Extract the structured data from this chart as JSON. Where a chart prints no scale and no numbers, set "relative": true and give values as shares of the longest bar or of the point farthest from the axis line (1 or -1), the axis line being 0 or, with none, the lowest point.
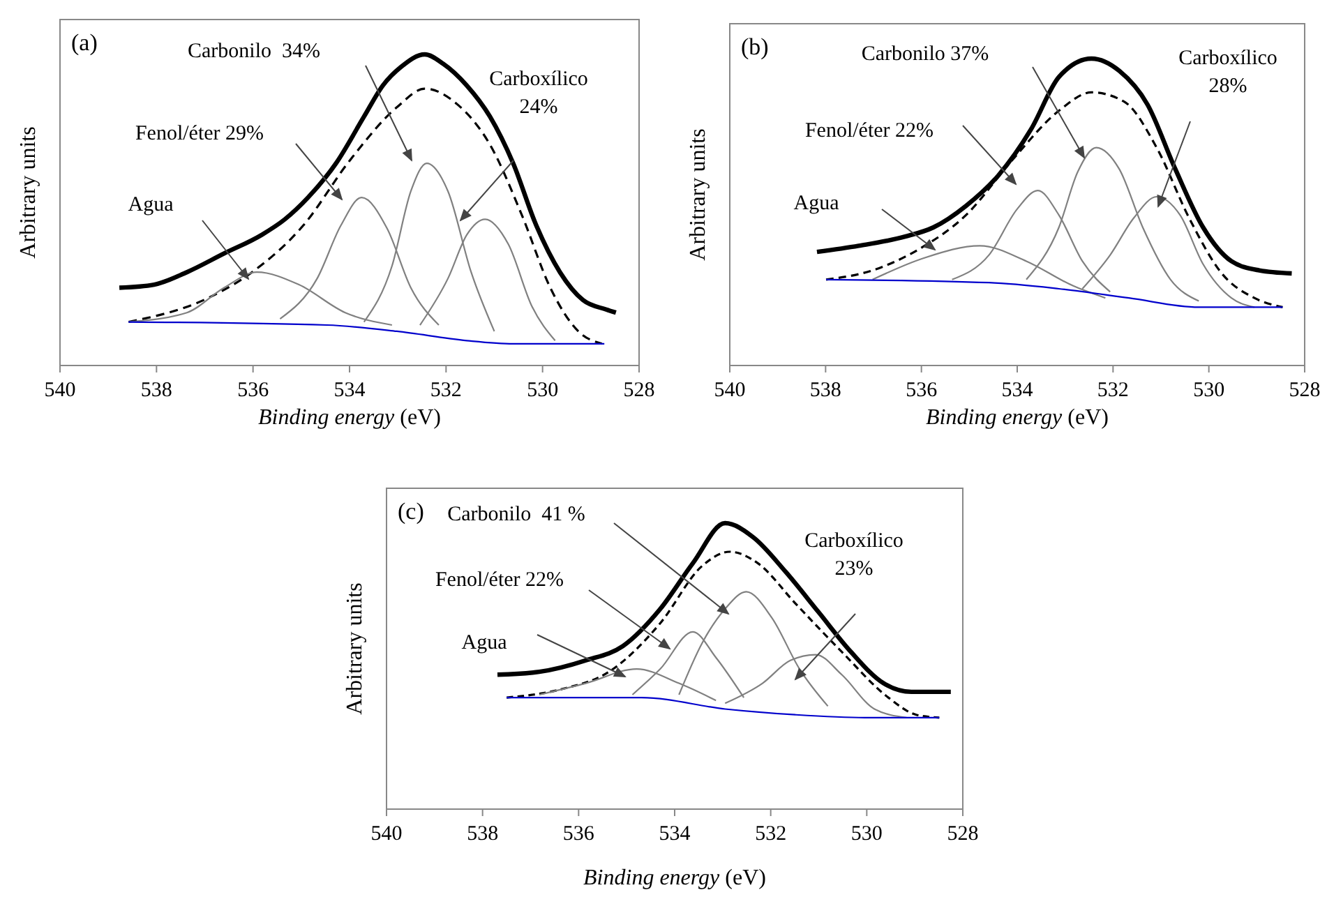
{
  "chart_data": [
    {
      "type": "line",
      "title": "(a)",
      "xlabel": "Binding energy (eV)",
      "ylabel": "Arbitrary units",
      "relative": true,
      "tick_labels": "x",
      "xlim": [
        540,
        528
      ],
      "xticks": [
        540,
        538,
        536,
        534,
        532,
        530,
        528
      ],
      "grid": false,
      "marker": "none",
      "series": [
        {
          "color": "#000000",
          "line_style": "solid",
          "x": [
            538.77,
            538.05,
            537.37,
            536.6,
            535.82,
            535.34,
            534.86,
            534.28,
            533.7,
            533.31,
            532.93,
            532.44,
            532.06,
            531.57,
            531.09,
            530.61,
            530.13,
            529.64,
            529.16,
            528.68,
            528.48
          ],
          "values": [
            0.25,
            0.26,
            0.3,
            0.36,
            0.42,
            0.47,
            0.54,
            0.65,
            0.8,
            0.9,
            0.96,
            1,
            0.97,
            0.9,
            0.8,
            0.65,
            0.45,
            0.3,
            0.21,
            0.18,
            0.17
          ]
        },
        {
          "color": "#000000",
          "line_style": "dashed",
          "x": [
            538.58,
            536.89,
            536.02,
            534.96,
            533.99,
            533.02,
            532.44,
            531.77,
            531.09,
            530.42,
            529.84,
            529.26,
            528.77
          ],
          "values": [
            0.14,
            0.22,
            0.3,
            0.45,
            0.66,
            0.83,
            0.89,
            0.84,
            0.71,
            0.48,
            0.25,
            0.11,
            0.07
          ]
        },
        {
          "color": "#808080",
          "line_style": "solid",
          "x": [
            538.58,
            537.37,
            536.6,
            535.92,
            535.05,
            534.09,
            533.12
          ],
          "values": [
            0.14,
            0.17,
            0.25,
            0.3,
            0.26,
            0.17,
            0.13
          ]
        },
        {
          "color": "#808080",
          "line_style": "solid",
          "x": [
            535.44,
            534.67,
            534.18,
            533.75,
            533.22,
            532.73,
            532.15
          ],
          "values": [
            0.15,
            0.28,
            0.45,
            0.54,
            0.44,
            0.25,
            0.13
          ]
        },
        {
          "color": "#808080",
          "line_style": "solid",
          "x": [
            533.7,
            533.12,
            532.73,
            532.4,
            531.96,
            531.48,
            531.0
          ],
          "values": [
            0.14,
            0.32,
            0.56,
            0.65,
            0.56,
            0.3,
            0.11
          ]
        },
        {
          "color": "#808080",
          "line_style": "solid",
          "x": [
            532.54,
            531.96,
            531.57,
            531.19,
            530.71,
            530.22,
            529.74
          ],
          "values": [
            0.13,
            0.28,
            0.42,
            0.47,
            0.39,
            0.19,
            0.08
          ]
        },
        {
          "color": "#0000cc",
          "line_style": "solid",
          "x": [
            538.58,
            534.47,
            533.02,
            531.57,
            530.61,
            528.72
          ],
          "values": [
            0.14,
            0.13,
            0.11,
            0.08,
            0.07,
            0.07
          ]
        }
      ],
      "annotations": [
        "Agua",
        "Fenol/éter 29%",
        "Carbonilo  34%",
        "Carboxílico\n24%"
      ]
    },
    {
      "type": "line",
      "title": "(b)",
      "xlabel": "Binding energy (eV)",
      "ylabel": "Arbitrary units",
      "relative": true,
      "tick_labels": "x",
      "xlim": [
        540,
        528
      ],
      "xticks": [
        540,
        538,
        536,
        534,
        532,
        530,
        528
      ],
      "grid": false,
      "marker": "none",
      "series": [
        {
          "color": "#000000",
          "line_style": "solid",
          "x": [
            538.18,
            537.31,
            536.34,
            535.75,
            535.07,
            534.39,
            533.71,
            533.13,
            532.45,
            531.87,
            531.28,
            530.7,
            530.12,
            529.53,
            528.95,
            528.27
          ],
          "values": [
            0.37,
            0.39,
            0.42,
            0.45,
            0.52,
            0.62,
            0.77,
            0.94,
            1,
            0.96,
            0.85,
            0.64,
            0.45,
            0.34,
            0.31,
            0.3
          ]
        },
        {
          "color": "#000000",
          "line_style": "dashed",
          "x": [
            537.99,
            537.02,
            536.04,
            535.07,
            534.1,
            533.13,
            532.45,
            531.77,
            531.09,
            530.41,
            529.73,
            529.05,
            528.46
          ],
          "values": [
            0.28,
            0.31,
            0.38,
            0.49,
            0.67,
            0.83,
            0.89,
            0.86,
            0.71,
            0.48,
            0.3,
            0.22,
            0.19
          ]
        },
        {
          "color": "#808080",
          "line_style": "solid",
          "x": [
            537.02,
            535.95,
            534.78,
            533.81,
            532.84,
            532.16
          ],
          "values": [
            0.28,
            0.35,
            0.39,
            0.34,
            0.26,
            0.22
          ]
        },
        {
          "color": "#808080",
          "line_style": "solid",
          "x": [
            535.36,
            534.59,
            534.0,
            533.57,
            533.13,
            532.64,
            532.06
          ],
          "values": [
            0.28,
            0.36,
            0.51,
            0.57,
            0.49,
            0.34,
            0.24
          ]
        },
        {
          "color": "#808080",
          "line_style": "solid",
          "x": [
            533.81,
            533.13,
            532.74,
            532.35,
            531.87,
            531.38,
            530.8,
            530.21
          ],
          "values": [
            0.28,
            0.45,
            0.63,
            0.71,
            0.64,
            0.45,
            0.28,
            0.21
          ]
        },
        {
          "color": "#808080",
          "line_style": "solid",
          "x": [
            532.64,
            532.06,
            531.57,
            531.09,
            530.6,
            530.12,
            529.53,
            529.05
          ],
          "values": [
            0.25,
            0.36,
            0.48,
            0.55,
            0.49,
            0.33,
            0.22,
            0.19
          ]
        },
        {
          "color": "#0000cc",
          "line_style": "solid",
          "x": [
            537.99,
            534.59,
            533.13,
            531.67,
            530.21,
            528.46
          ],
          "values": [
            0.28,
            0.27,
            0.25,
            0.22,
            0.19,
            0.19
          ]
        }
      ],
      "annotations": [
        "Agua",
        "Fenol/éter 22%",
        "Carbonilo 37%",
        "Carboxílico\n28%"
      ]
    },
    {
      "type": "line",
      "title": "(c)",
      "xlabel": "Binding energy (eV)",
      "ylabel": "Arbitrary  units",
      "relative": true,
      "tick_labels": "x",
      "xlim": [
        540,
        528
      ],
      "xticks": [
        540,
        538,
        536,
        534,
        532,
        530,
        528
      ],
      "grid": false,
      "marker": "none",
      "series": [
        {
          "color": "#000000",
          "line_style": "solid",
          "x": [
            537.69,
            536.82,
            535.85,
            535.08,
            534.3,
            533.62,
            532.95,
            532.36,
            531.69,
            531.01,
            530.33,
            529.65,
            529.07,
            528.25
          ],
          "values": [
            0.47,
            0.48,
            0.52,
            0.57,
            0.7,
            0.86,
            1,
            0.95,
            0.83,
            0.69,
            0.55,
            0.44,
            0.41,
            0.41
          ]
        },
        {
          "color": "#000000",
          "line_style": "dashed",
          "x": [
            537.5,
            536.34,
            535.37,
            534.3,
            533.43,
            532.85,
            532.27,
            531.49,
            530.52,
            529.55,
            528.97,
            528.49
          ],
          "values": [
            0.39,
            0.42,
            0.48,
            0.65,
            0.85,
            0.9,
            0.86,
            0.72,
            0.55,
            0.39,
            0.33,
            0.32
          ]
        },
        {
          "color": "#808080",
          "line_style": "solid",
          "x": [
            536.82,
            535.85,
            534.79,
            533.91,
            533.14
          ],
          "values": [
            0.4,
            0.44,
            0.49,
            0.44,
            0.38
          ]
        },
        {
          "color": "#808080",
          "line_style": "solid",
          "x": [
            534.88,
            534.3,
            533.62,
            533.14,
            532.56
          ],
          "values": [
            0.4,
            0.49,
            0.62,
            0.53,
            0.39
          ]
        },
        {
          "color": "#808080",
          "line_style": "solid",
          "x": [
            533.91,
            533.43,
            532.95,
            532.51,
            531.98,
            531.4,
            530.81
          ],
          "values": [
            0.4,
            0.58,
            0.7,
            0.76,
            0.67,
            0.49,
            0.36
          ]
        },
        {
          "color": "#808080",
          "line_style": "solid",
          "x": [
            532.95,
            532.17,
            531.59,
            531.06,
            530.52,
            529.84,
            529.17
          ],
          "values": [
            0.37,
            0.44,
            0.52,
            0.54,
            0.47,
            0.35,
            0.32
          ]
        },
        {
          "color": "#0000cc",
          "line_style": "solid",
          "x": [
            537.5,
            534.69,
            532.95,
            531.49,
            530.04,
            528.49
          ],
          "values": [
            0.39,
            0.39,
            0.35,
            0.33,
            0.32,
            0.32
          ]
        }
      ],
      "annotations": [
        "Agua",
        "Fenol/éter 22%",
        "Carbonilo  41 %",
        "Carboxílico\n23%"
      ]
    }
  ]
}
